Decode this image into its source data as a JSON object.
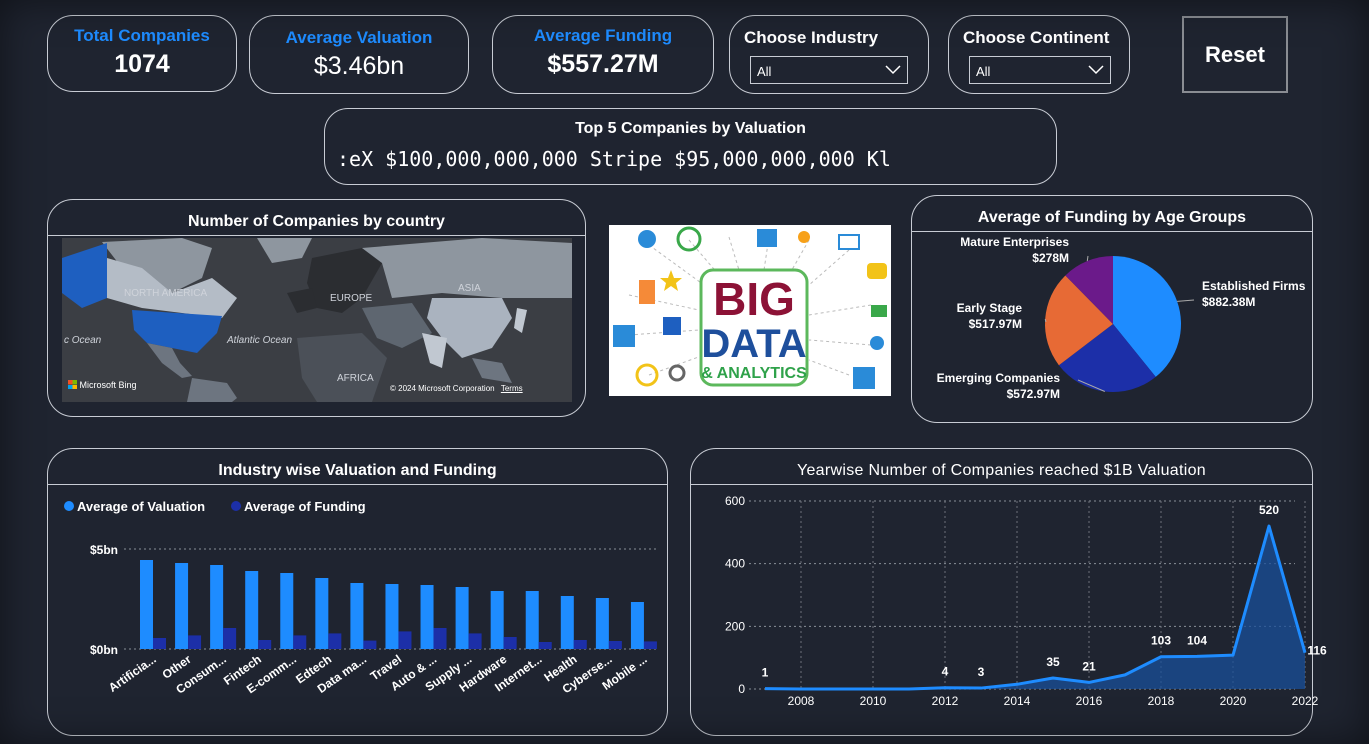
{
  "kpis": {
    "total_companies": {
      "label": "Total Companies",
      "value": "1074"
    },
    "avg_valuation": {
      "label": "Average Valuation",
      "value": "$3.46bn"
    },
    "avg_funding": {
      "label": "Average Funding",
      "value": "$557.27M"
    }
  },
  "slicers": {
    "industry": {
      "label": "Choose Industry",
      "value": "All"
    },
    "continent": {
      "label": "Choose Continent",
      "value": "All"
    }
  },
  "reset_label": "Reset",
  "top5": {
    "title": "Top 5 Companies by Valuation",
    "ticker_text": ":eX $100,000,000,000      Stripe $95,000,000,000      Kl"
  },
  "map_panel": {
    "title": "Number of Companies by country",
    "labels": {
      "north_america": "NORTH AMERICA",
      "europe": "EUROPE",
      "asia": "ASIA",
      "africa": "AFRICA",
      "atlantic": "Atlantic Ocean",
      "ocean_left": "c Ocean"
    },
    "bing": "Microsoft Bing",
    "copyright": "© 2024 Microsoft Corporation",
    "terms": "Terms"
  },
  "image_panel": {
    "line1": "BIG",
    "line2": "DATA",
    "line3": "& ANALYTICS"
  },
  "colors": {
    "accent_blue": "#1e8cff",
    "dark_blue": "#1c2fa8",
    "orange": "#e76a35",
    "purple": "#6b1a8a",
    "background": "#1f2430"
  },
  "pie_panel": {
    "chart_data": {
      "type": "pie",
      "title": "Average of Funding by Age Groups",
      "slices": [
        {
          "name": "Established Firms",
          "label": "$882.38M",
          "value": 882.38,
          "color": "#1e8cff"
        },
        {
          "name": "Emerging Companies",
          "label": "$572.97M",
          "value": 572.97,
          "color": "#1c2fa8"
        },
        {
          "name": "Early Stage",
          "label": "$517.97M",
          "value": 517.97,
          "color": "#e76a35"
        },
        {
          "name": "Mature Enterprises",
          "label": "$278M",
          "value": 278,
          "color": "#6b1a8a"
        }
      ]
    }
  },
  "bar_panel": {
    "chart_data": {
      "type": "bar",
      "title": "Industry wise Valuation and Funding",
      "categories": [
        "Artificia...",
        "Other",
        "Consum...",
        "Fintech",
        "E-comm...",
        "Edtech",
        "Data ma...",
        "Travel",
        "Auto & ...",
        "Supply ...",
        "Hardware",
        "Internet...",
        "Health",
        "Cyberse...",
        "Mobile ..."
      ],
      "series": [
        {
          "name": "Average of Valuation",
          "color": "#1e8cff",
          "values": [
            4.45,
            4.3,
            4.2,
            3.9,
            3.8,
            3.55,
            3.3,
            3.25,
            3.2,
            3.1,
            2.9,
            2.9,
            2.65,
            2.55,
            2.35
          ]
        },
        {
          "name": "Average of Funding",
          "color": "#1c2fa8",
          "values": [
            0.55,
            0.68,
            1.05,
            0.45,
            0.68,
            0.78,
            0.42,
            0.88,
            1.05,
            0.78,
            0.6,
            0.35,
            0.45,
            0.4,
            0.38
          ]
        }
      ],
      "ylim": [
        0,
        5
      ],
      "yticks": [
        {
          "v": 0,
          "label": "$0bn"
        },
        {
          "v": 5,
          "label": "$5bn"
        }
      ]
    }
  },
  "line_panel": {
    "chart_data": {
      "type": "area",
      "title": "Yearwise Number of Companies reached $1B Valuation",
      "x": [
        2007,
        2008,
        2009,
        2010,
        2011,
        2012,
        2013,
        2014,
        2015,
        2016,
        2017,
        2018,
        2019,
        2020,
        2021,
        2022
      ],
      "y": [
        1,
        0,
        0,
        0,
        0,
        4,
        3,
        15,
        35,
        21,
        45,
        103,
        104,
        108,
        520,
        116
      ],
      "data_labels": [
        {
          "x": 2007,
          "y": 1,
          "label": "1"
        },
        {
          "x": 2012,
          "y": 4,
          "label": "4"
        },
        {
          "x": 2013,
          "y": 3,
          "label": "3"
        },
        {
          "x": 2015,
          "y": 35,
          "label": "35"
        },
        {
          "x": 2016,
          "y": 21,
          "label": "21"
        },
        {
          "x": 2018,
          "y": 103,
          "label": "103"
        },
        {
          "x": 2019,
          "y": 104,
          "label": "104"
        },
        {
          "x": 2021,
          "y": 520,
          "label": "520"
        },
        {
          "x": 2022,
          "y": 116,
          "label": "116"
        }
      ],
      "xticks": [
        2008,
        2010,
        2012,
        2014,
        2016,
        2018,
        2020,
        2022
      ],
      "yticks": [
        0,
        200,
        400,
        600
      ],
      "xlim": [
        2007,
        2022
      ],
      "ylim": [
        0,
        600
      ],
      "color": "#1e8cff"
    }
  }
}
